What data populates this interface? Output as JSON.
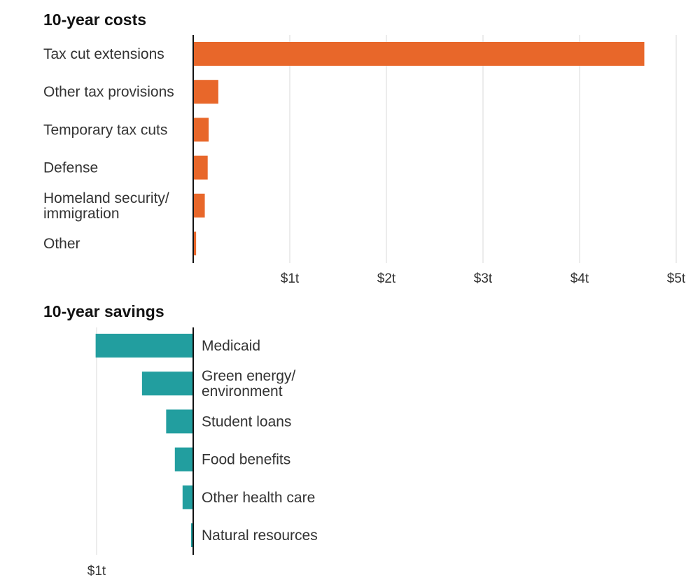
{
  "colors": {
    "costs": "#E8672A",
    "savings": "#229E9F"
  },
  "chart_data": [
    {
      "type": "bar",
      "orientation": "horizontal",
      "title": "10-year costs",
      "categories": [
        "Tax cut extensions",
        "Other tax provisions",
        "Temporary tax cuts",
        "Defense",
        "Homeland security/\nimmigration",
        "Other"
      ],
      "values": [
        4.67,
        0.26,
        0.16,
        0.15,
        0.12,
        0.03
      ],
      "unit": "trillion dollars",
      "xlim": [
        0,
        5
      ],
      "tick_values": [
        1,
        2,
        3,
        4,
        5
      ],
      "tick_labels": [
        "$1t",
        "$2t",
        "$3t",
        "$4t",
        "$5t"
      ],
      "grid": true
    },
    {
      "type": "bar",
      "orientation": "horizontal",
      "title": "10-year savings",
      "categories": [
        "Medicaid",
        "Green energy/\nenvironment",
        "Student loans",
        "Food benefits",
        "Other health care",
        "Natural resources"
      ],
      "values": [
        -1.01,
        -0.53,
        -0.28,
        -0.19,
        -0.11,
        -0.02
      ],
      "unit": "trillion dollars",
      "xlim": [
        -1,
        0
      ],
      "tick_values": [
        -1
      ],
      "tick_labels": [
        "$1t"
      ],
      "grid": true
    }
  ]
}
